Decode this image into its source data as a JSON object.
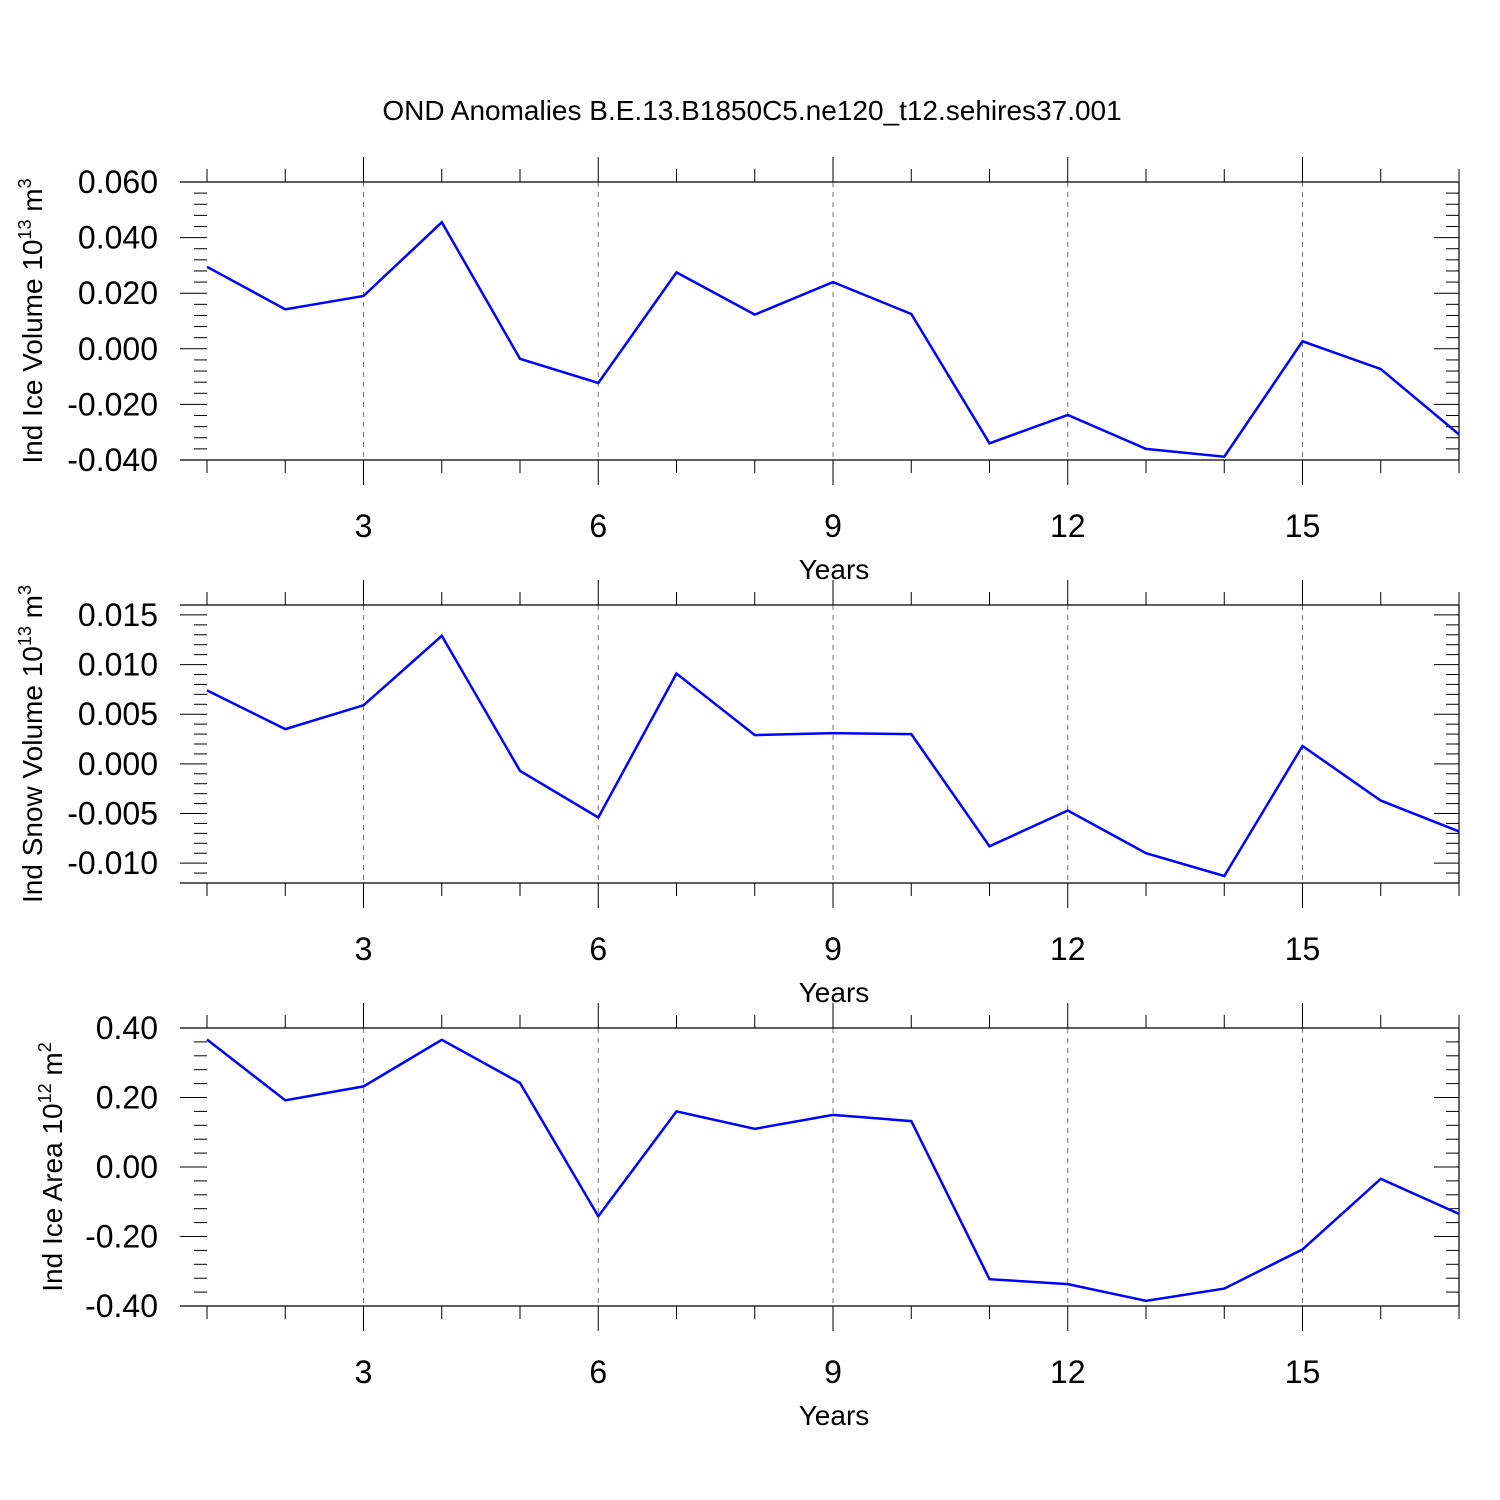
{
  "figure_title": "OND Anomalies B.E.13.B1850C5.ne120_t12.sehires37.001",
  "colors": {
    "series": "#0000ff",
    "axes": "#000000",
    "gridline": "#777777"
  },
  "chart_data": [
    {
      "type": "line",
      "title": "OND Anomalies B.E.13.B1850C5.ne120_t12.sehires37.001",
      "xlabel": "Years",
      "ylabel": {
        "text": "Ind Ice Volume 10",
        "exponent": "13",
        "unit": "m",
        "unit_exponent": "3"
      },
      "xlim": [
        1,
        17
      ],
      "ylim": [
        -0.04,
        0.06
      ],
      "xticks": [
        3,
        6,
        9,
        12,
        15
      ],
      "xtick_labels": [
        "3",
        "6",
        "9",
        "12",
        "15"
      ],
      "yticks": [
        -0.04,
        -0.02,
        0.0,
        0.02,
        0.04,
        0.06
      ],
      "ytick_labels": [
        "-0.040",
        "-0.020",
        "0.000",
        "0.020",
        "0.040",
        "0.060"
      ],
      "grid": "x-dashed",
      "x": [
        1,
        2,
        3,
        4,
        5,
        6,
        7,
        8,
        9,
        10,
        11,
        12,
        13,
        14,
        15,
        16,
        17
      ],
      "series": [
        {
          "name": "Ind Ice Volume",
          "values": [
            0.0295,
            0.0142,
            0.019,
            0.0455,
            -0.0036,
            -0.0123,
            0.0275,
            0.0123,
            0.024,
            0.0125,
            -0.034,
            -0.0238,
            -0.036,
            -0.0388,
            0.0027,
            -0.0073,
            -0.0308
          ]
        }
      ]
    },
    {
      "type": "line",
      "xlabel": "Years",
      "ylabel": {
        "text": "Ind Snow Volume 10",
        "exponent": "13",
        "unit": "m",
        "unit_exponent": "3"
      },
      "xlim": [
        1,
        17
      ],
      "ylim": [
        -0.012,
        0.016
      ],
      "xticks": [
        3,
        6,
        9,
        12,
        15
      ],
      "xtick_labels": [
        "3",
        "6",
        "9",
        "12",
        "15"
      ],
      "yticks": [
        -0.01,
        -0.005,
        0.0,
        0.005,
        0.01,
        0.015
      ],
      "ytick_labels": [
        "-0.010",
        "-0.005",
        "0.000",
        "0.005",
        "0.010",
        "0.015"
      ],
      "grid": "x-dashed",
      "x": [
        1,
        2,
        3,
        4,
        5,
        6,
        7,
        8,
        9,
        10,
        11,
        12,
        13,
        14,
        15,
        16,
        17
      ],
      "series": [
        {
          "name": "Ind Snow Volume",
          "values": [
            0.0074,
            0.0035,
            0.0059,
            0.0129,
            -0.0007,
            -0.0054,
            0.0091,
            0.0029,
            0.0031,
            0.003,
            -0.0083,
            -0.0047,
            -0.009,
            -0.0113,
            0.0018,
            -0.0037,
            -0.0068
          ]
        }
      ]
    },
    {
      "type": "line",
      "xlabel": "Years",
      "ylabel": {
        "text": "Ind Ice Area 10",
        "exponent": "12",
        "unit": "m",
        "unit_exponent": "2"
      },
      "xlim": [
        1,
        17
      ],
      "ylim": [
        -0.4,
        0.4
      ],
      "xticks": [
        3,
        6,
        9,
        12,
        15
      ],
      "xtick_labels": [
        "3",
        "6",
        "9",
        "12",
        "15"
      ],
      "yticks": [
        -0.4,
        -0.2,
        0.0,
        0.2,
        0.4
      ],
      "ytick_labels": [
        "-0.40",
        "-0.20",
        "0.00",
        "0.20",
        "0.40"
      ],
      "grid": "x-dashed",
      "x": [
        1,
        2,
        3,
        4,
        5,
        6,
        7,
        8,
        9,
        10,
        11,
        12,
        13,
        14,
        15,
        16,
        17
      ],
      "series": [
        {
          "name": "Ind Ice Area",
          "values": [
            0.367,
            0.192,
            0.232,
            0.366,
            0.242,
            -0.142,
            0.16,
            0.11,
            0.15,
            0.132,
            -0.323,
            -0.337,
            -0.385,
            -0.35,
            -0.237,
            -0.034,
            -0.135
          ]
        }
      ]
    }
  ]
}
